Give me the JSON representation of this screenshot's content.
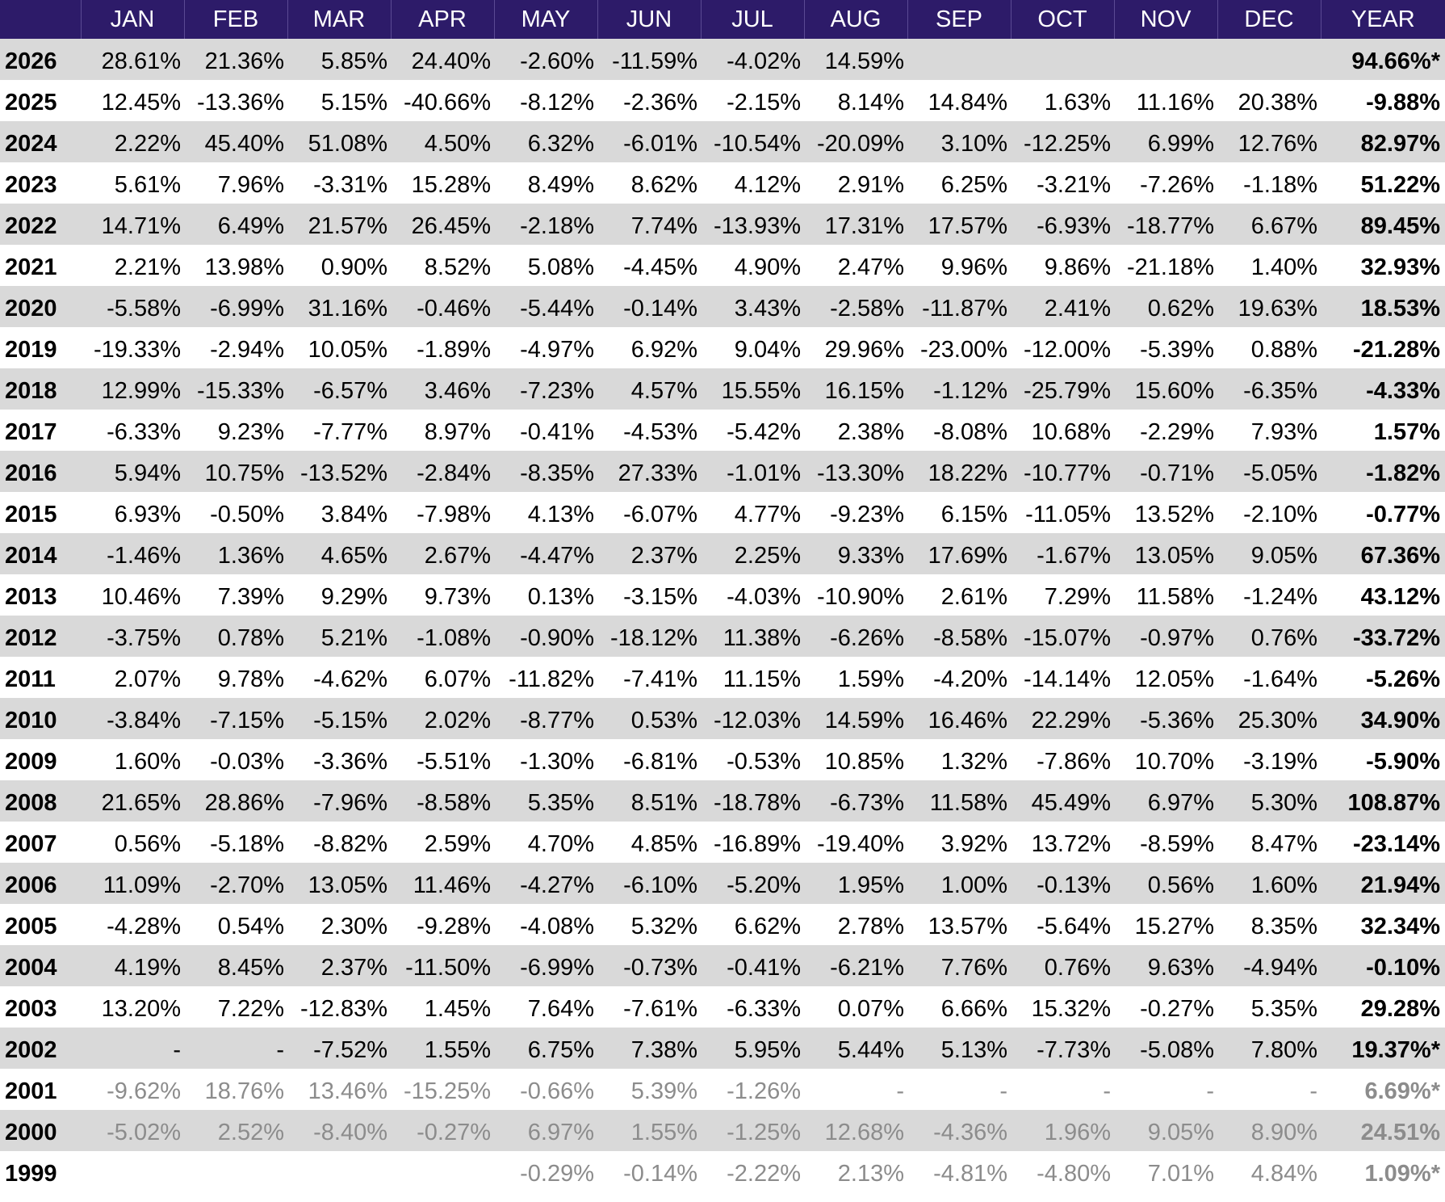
{
  "table": {
    "columns": [
      "JAN",
      "FEB",
      "MAR",
      "APR",
      "MAY",
      "JUN",
      "JUL",
      "AUG",
      "SEP",
      "OCT",
      "NOV",
      "DEC",
      "YEAR"
    ],
    "rows": [
      {
        "year": "2026",
        "months": [
          "28.61%",
          "21.36%",
          "5.85%",
          "24.40%",
          "-2.60%",
          "-11.59%",
          "-4.02%",
          "14.59%",
          null,
          null,
          null,
          null
        ],
        "total": "94.66%*"
      },
      {
        "year": "2025",
        "months": [
          "12.45%",
          "-13.36%",
          "5.15%",
          "-40.66%",
          "-8.12%",
          "-2.36%",
          "-2.15%",
          "8.14%",
          "14.84%",
          "1.63%",
          "11.16%",
          "20.38%"
        ],
        "total": "-9.88%"
      },
      {
        "year": "2024",
        "months": [
          "2.22%",
          "45.40%",
          "51.08%",
          "4.50%",
          "6.32%",
          "-6.01%",
          "-10.54%",
          "-20.09%",
          "3.10%",
          "-12.25%",
          "6.99%",
          "12.76%"
        ],
        "total": "82.97%"
      },
      {
        "year": "2023",
        "months": [
          "5.61%",
          "7.96%",
          "-3.31%",
          "15.28%",
          "8.49%",
          "8.62%",
          "4.12%",
          "2.91%",
          "6.25%",
          "-3.21%",
          "-7.26%",
          "-1.18%"
        ],
        "total": "51.22%"
      },
      {
        "year": "2022",
        "months": [
          "14.71%",
          "6.49%",
          "21.57%",
          "26.45%",
          "-2.18%",
          "7.74%",
          "-13.93%",
          "17.31%",
          "17.57%",
          "-6.93%",
          "-18.77%",
          "6.67%"
        ],
        "total": "89.45%"
      },
      {
        "year": "2021",
        "months": [
          "2.21%",
          "13.98%",
          "0.90%",
          "8.52%",
          "5.08%",
          "-4.45%",
          "4.90%",
          "2.47%",
          "9.96%",
          "9.86%",
          "-21.18%",
          "1.40%"
        ],
        "total": "32.93%"
      },
      {
        "year": "2020",
        "months": [
          "-5.58%",
          "-6.99%",
          "31.16%",
          "-0.46%",
          "-5.44%",
          "-0.14%",
          "3.43%",
          "-2.58%",
          "-11.87%",
          "2.41%",
          "0.62%",
          "19.63%"
        ],
        "total": "18.53%"
      },
      {
        "year": "2019",
        "months": [
          "-19.33%",
          "-2.94%",
          "10.05%",
          "-1.89%",
          "-4.97%",
          "6.92%",
          "9.04%",
          "29.96%",
          "-23.00%",
          "-12.00%",
          "-5.39%",
          "0.88%"
        ],
        "total": "-21.28%"
      },
      {
        "year": "2018",
        "months": [
          "12.99%",
          "-15.33%",
          "-6.57%",
          "3.46%",
          "-7.23%",
          "4.57%",
          "15.55%",
          "16.15%",
          "-1.12%",
          "-25.79%",
          "15.60%",
          "-6.35%"
        ],
        "total": "-4.33%"
      },
      {
        "year": "2017",
        "months": [
          "-6.33%",
          "9.23%",
          "-7.77%",
          "8.97%",
          "-0.41%",
          "-4.53%",
          "-5.42%",
          "2.38%",
          "-8.08%",
          "10.68%",
          "-2.29%",
          "7.93%"
        ],
        "total": "1.57%"
      },
      {
        "year": "2016",
        "months": [
          "5.94%",
          "10.75%",
          "-13.52%",
          "-2.84%",
          "-8.35%",
          "27.33%",
          "-1.01%",
          "-13.30%",
          "18.22%",
          "-10.77%",
          "-0.71%",
          "-5.05%"
        ],
        "total": "-1.82%"
      },
      {
        "year": "2015",
        "months": [
          "6.93%",
          "-0.50%",
          "3.84%",
          "-7.98%",
          "4.13%",
          "-6.07%",
          "4.77%",
          "-9.23%",
          "6.15%",
          "-11.05%",
          "13.52%",
          "-2.10%"
        ],
        "total": "-0.77%"
      },
      {
        "year": "2014",
        "months": [
          "-1.46%",
          "1.36%",
          "4.65%",
          "2.67%",
          "-4.47%",
          "2.37%",
          "2.25%",
          "9.33%",
          "17.69%",
          "-1.67%",
          "13.05%",
          "9.05%"
        ],
        "total": "67.36%"
      },
      {
        "year": "2013",
        "months": [
          "10.46%",
          "7.39%",
          "9.29%",
          "9.73%",
          "0.13%",
          "-3.15%",
          "-4.03%",
          "-10.90%",
          "2.61%",
          "7.29%",
          "11.58%",
          "-1.24%"
        ],
        "total": "43.12%"
      },
      {
        "year": "2012",
        "months": [
          "-3.75%",
          "0.78%",
          "5.21%",
          "-1.08%",
          "-0.90%",
          "-18.12%",
          "11.38%",
          "-6.26%",
          "-8.58%",
          "-15.07%",
          "-0.97%",
          "0.76%"
        ],
        "total": "-33.72%"
      },
      {
        "year": "2011",
        "months": [
          "2.07%",
          "9.78%",
          "-4.62%",
          "6.07%",
          "-11.82%",
          "-7.41%",
          "11.15%",
          "1.59%",
          "-4.20%",
          "-14.14%",
          "12.05%",
          "-1.64%"
        ],
        "total": "-5.26%"
      },
      {
        "year": "2010",
        "months": [
          "-3.84%",
          "-7.15%",
          "-5.15%",
          "2.02%",
          "-8.77%",
          "0.53%",
          "-12.03%",
          "14.59%",
          "16.46%",
          "22.29%",
          "-5.36%",
          "25.30%"
        ],
        "total": "34.90%"
      },
      {
        "year": "2009",
        "months": [
          "1.60%",
          "-0.03%",
          "-3.36%",
          "-5.51%",
          "-1.30%",
          "-6.81%",
          "-0.53%",
          "10.85%",
          "1.32%",
          "-7.86%",
          "10.70%",
          "-3.19%"
        ],
        "total": "-5.90%"
      },
      {
        "year": "2008",
        "months": [
          "21.65%",
          "28.86%",
          "-7.96%",
          "-8.58%",
          "5.35%",
          "8.51%",
          "-18.78%",
          "-6.73%",
          "11.58%",
          "45.49%",
          "6.97%",
          "5.30%"
        ],
        "total": "108.87%"
      },
      {
        "year": "2007",
        "months": [
          "0.56%",
          "-5.18%",
          "-8.82%",
          "2.59%",
          "4.70%",
          "4.85%",
          "-16.89%",
          "-19.40%",
          "3.92%",
          "13.72%",
          "-8.59%",
          "8.47%"
        ],
        "total": "-23.14%"
      },
      {
        "year": "2006",
        "months": [
          "11.09%",
          "-2.70%",
          "13.05%",
          "11.46%",
          "-4.27%",
          "-6.10%",
          "-5.20%",
          "1.95%",
          "1.00%",
          "-0.13%",
          "0.56%",
          "1.60%"
        ],
        "total": "21.94%"
      },
      {
        "year": "2005",
        "months": [
          "-4.28%",
          "0.54%",
          "2.30%",
          "-9.28%",
          "-4.08%",
          "5.32%",
          "6.62%",
          "2.78%",
          "13.57%",
          "-5.64%",
          "15.27%",
          "8.35%"
        ],
        "total": "32.34%"
      },
      {
        "year": "2004",
        "months": [
          "4.19%",
          "8.45%",
          "2.37%",
          "-11.50%",
          "-6.99%",
          "-0.73%",
          "-0.41%",
          "-6.21%",
          "7.76%",
          "0.76%",
          "9.63%",
          "-4.94%"
        ],
        "total": "-0.10%"
      },
      {
        "year": "2003",
        "months": [
          "13.20%",
          "7.22%",
          "-12.83%",
          "1.45%",
          "7.64%",
          "-7.61%",
          "-6.33%",
          "0.07%",
          "6.66%",
          "15.32%",
          "-0.27%",
          "5.35%"
        ],
        "total": "29.28%"
      },
      {
        "year": "2002",
        "months": [
          "-",
          "-",
          "-7.52%",
          "1.55%",
          "6.75%",
          "7.38%",
          "5.95%",
          "5.44%",
          "5.13%",
          "-7.73%",
          "-5.08%",
          "7.80%"
        ],
        "total": "19.37%*"
      },
      {
        "year": "2001",
        "months": [
          "-9.62%",
          "18.76%",
          "13.46%",
          "-15.25%",
          "-0.66%",
          "5.39%",
          "-1.26%",
          "-",
          "-",
          "-",
          "-",
          "-"
        ],
        "total": "6.69%*"
      },
      {
        "year": "2000",
        "months": [
          "-5.02%",
          "2.52%",
          "-8.40%",
          "-0.27%",
          "6.97%",
          "1.55%",
          "-1.25%",
          "12.68%",
          "-4.36%",
          "1.96%",
          "9.05%",
          "8.90%"
        ],
        "total": "24.51%"
      },
      {
        "year": "1999",
        "months": [
          null,
          null,
          null,
          null,
          "-0.29%",
          "-0.14%",
          "-2.22%",
          "2.13%",
          "-4.81%",
          "-4.80%",
          "7.01%",
          "4.84%"
        ],
        "total": "1.09%*"
      }
    ]
  }
}
